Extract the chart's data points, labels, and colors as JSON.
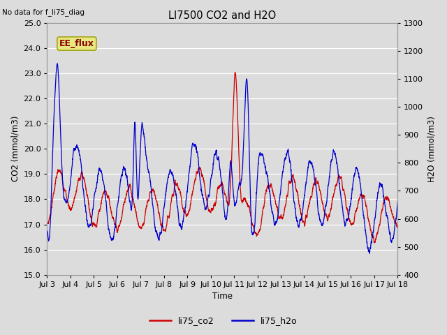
{
  "title": "LI7500 CO2 and H2O",
  "top_left_text": "No data for f_li75_diag",
  "xlabel": "Time",
  "ylabel_left": "CO2 (mmol/m3)",
  "ylabel_right": "H2O (mmol/m3)",
  "ylim_left": [
    15.0,
    25.0
  ],
  "ylim_right": [
    400,
    1300
  ],
  "legend_labels": [
    "li75_co2",
    "li75_h2o"
  ],
  "co2_color": "#cc0000",
  "h2o_color": "#0000cc",
  "plot_bg_color": "#dcdcdc",
  "fig_bg_color": "#dcdcdc",
  "ee_flux_label": "EE_flux",
  "ee_flux_bg": "#e8e880",
  "ee_flux_border": "#999900",
  "xtick_labels": [
    "Jul 3",
    "Jul 4",
    "Jul 5",
    "Jul 6",
    "Jul 7",
    "Jul 8",
    "Jul 9",
    "Jul 10",
    "Jul 11",
    "Jul 12",
    "Jul 13",
    "Jul 14",
    "Jul 15",
    "Jul 16",
    "Jul 17",
    "Jul 18"
  ],
  "yticks_left": [
    15.0,
    16.0,
    17.0,
    18.0,
    19.0,
    20.0,
    21.0,
    22.0,
    23.0,
    24.0,
    25.0
  ],
  "yticks_right": [
    400,
    500,
    600,
    700,
    800,
    900,
    1000,
    1100,
    1200,
    1300
  ],
  "n_points": 3000,
  "seed": 7
}
